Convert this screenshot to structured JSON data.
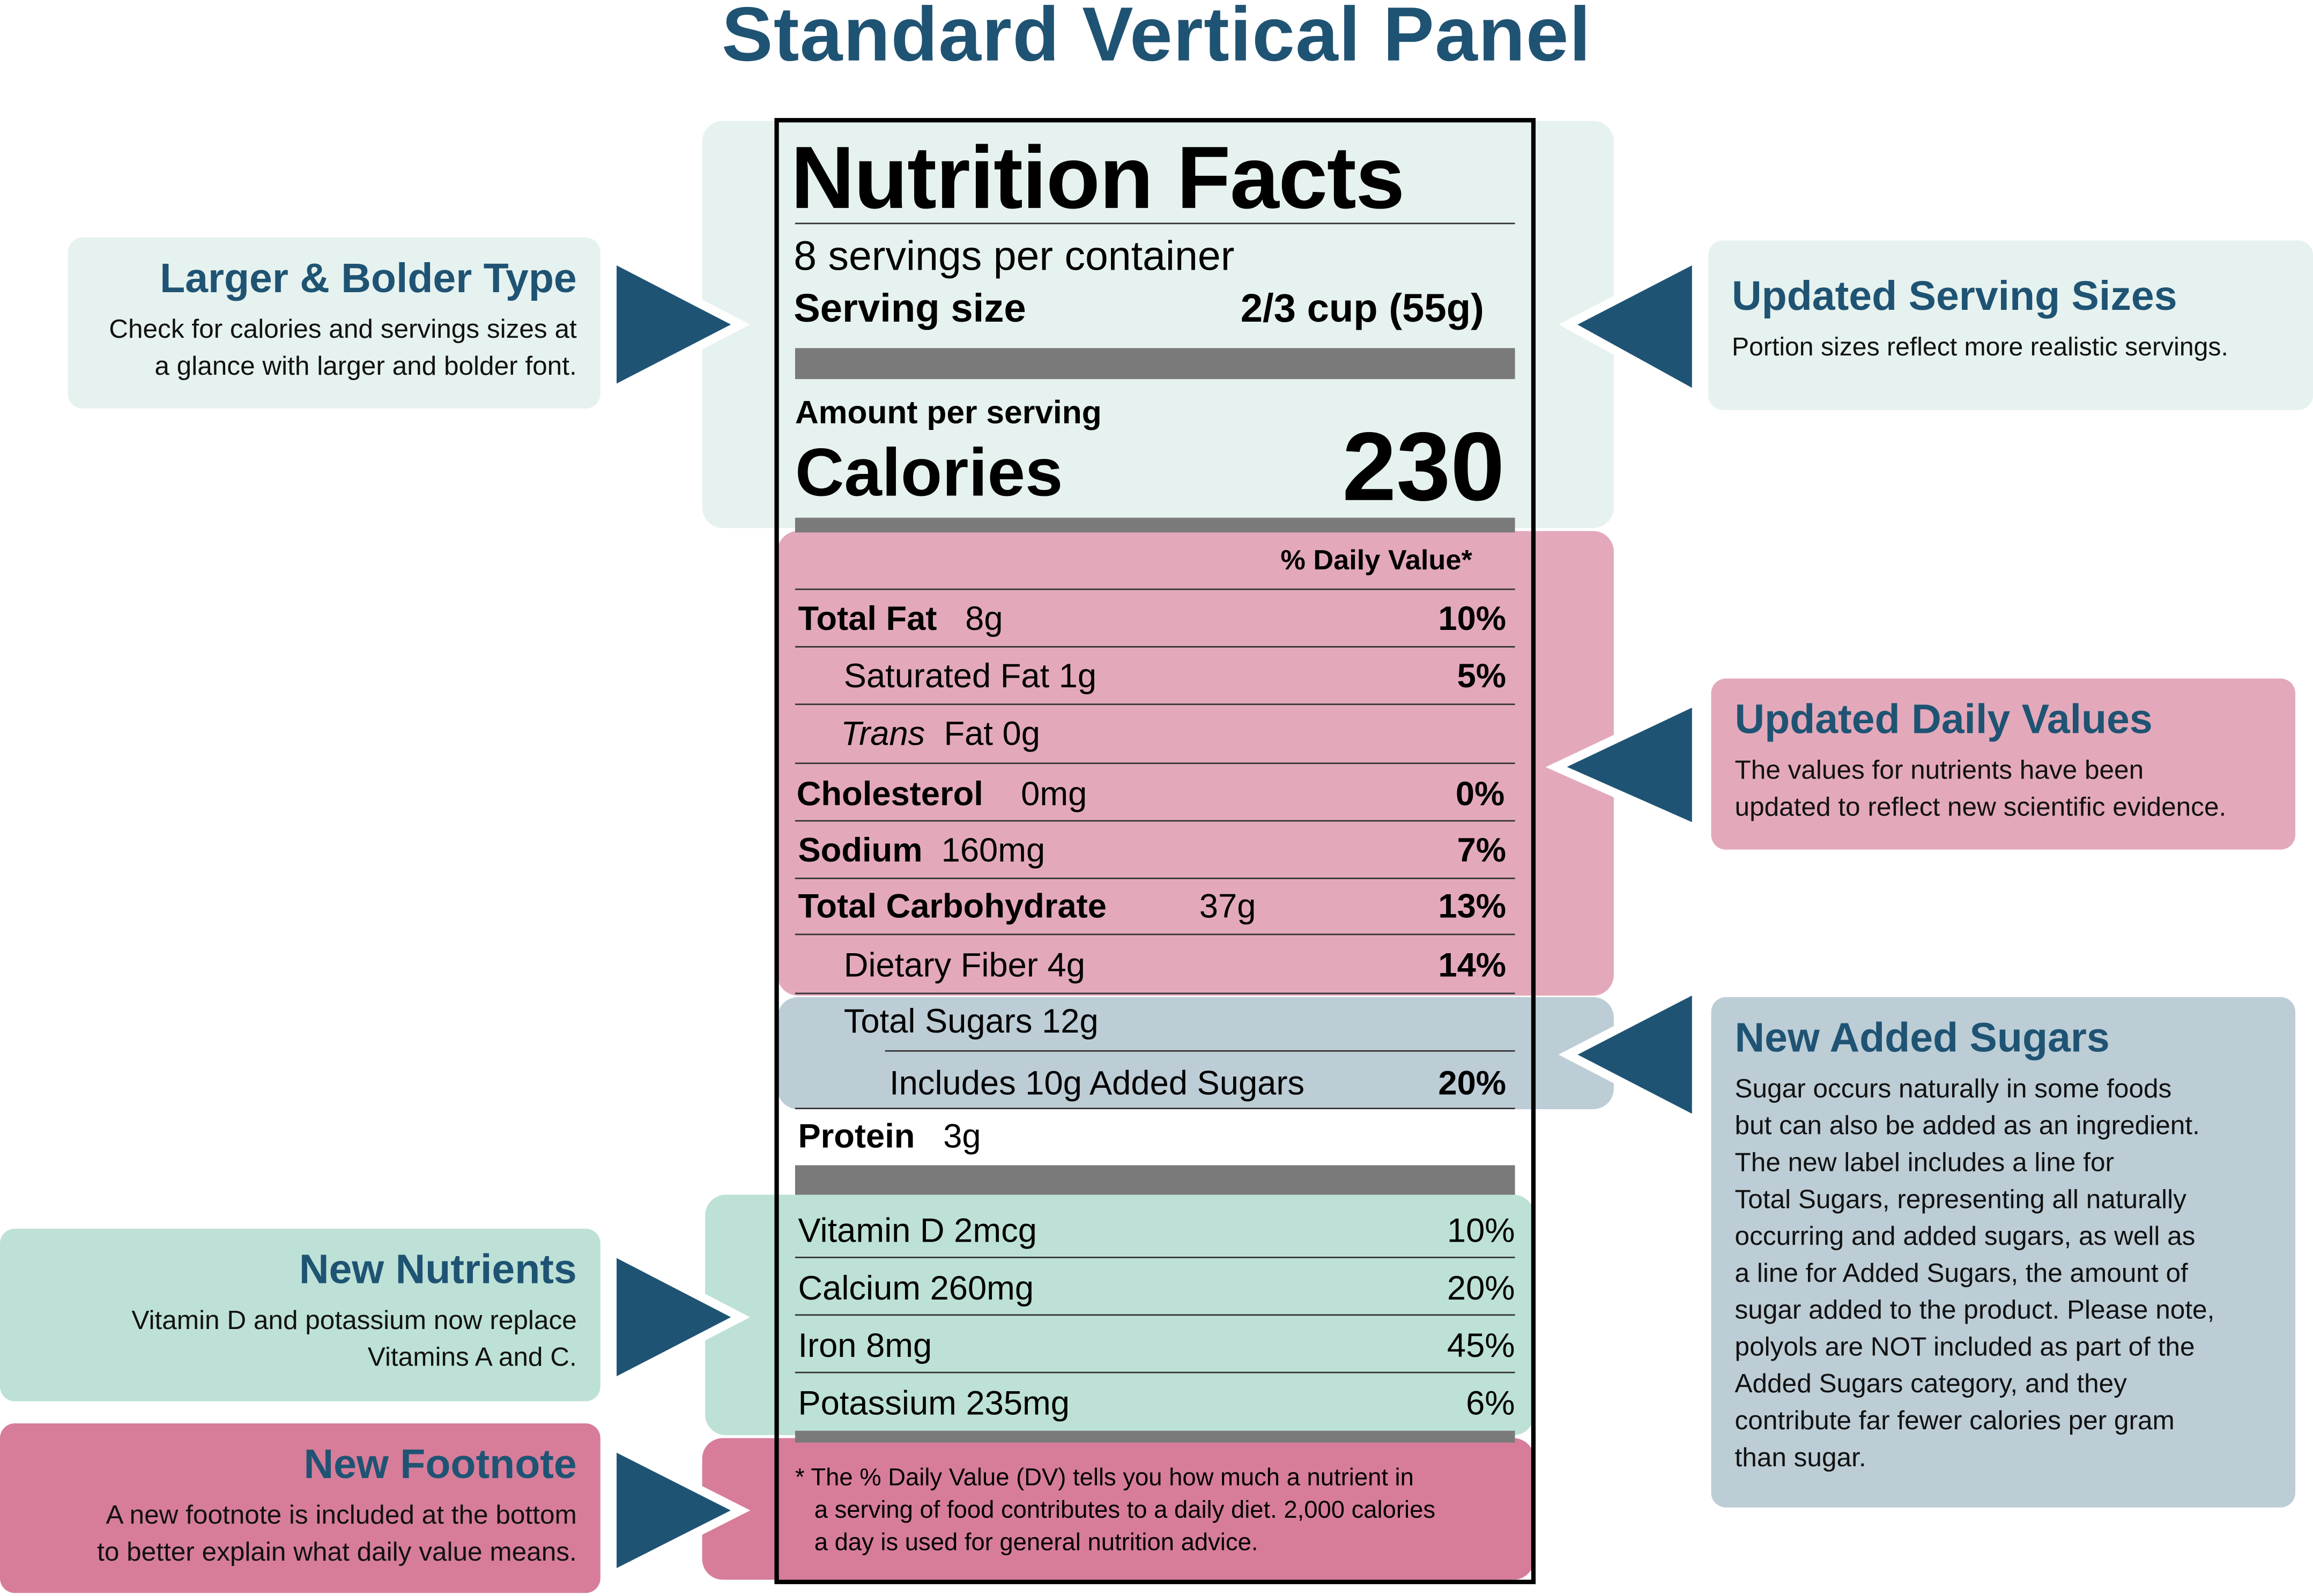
{
  "title": "Standard Vertical Panel",
  "colors": {
    "accent": "#1f5373",
    "mint_light": "#e6f2ef",
    "pink": "#e3a9ba",
    "blue_grey": "#bccdd6",
    "mint": "#bde1d6",
    "rose": "#d77d9a",
    "bar_gray": "#7a7a7a"
  },
  "label": {
    "heading": "Nutrition Facts",
    "servings": "8 servings per container",
    "serving_size_label": "Serving size",
    "serving_size_value": "2/3 cup (55g)",
    "amount_per_serving": "Amount per serving",
    "calories_label": "Calories",
    "calories_value": "230",
    "dv_header": "% Daily Value*",
    "nutrients": [
      {
        "name": "Total Fat",
        "amount": "8g",
        "dv": "10%"
      },
      {
        "name": "Saturated Fat 1g",
        "amount": "",
        "dv": "5%"
      },
      {
        "name_italic": "Trans",
        "name": "Fat 0g",
        "amount": "",
        "dv": ""
      },
      {
        "name": "Cholesterol",
        "amount": "0mg",
        "dv": "0%"
      },
      {
        "name": "Sodium",
        "amount": "160mg",
        "dv": "7%"
      },
      {
        "name": "Total Carbohydrate",
        "amount": "37g",
        "dv": "13%"
      },
      {
        "name": "Dietary Fiber 4g",
        "amount": "",
        "dv": "14%"
      },
      {
        "name": "Total Sugars 12g",
        "amount": "",
        "dv": ""
      },
      {
        "name": "Includes 10g Added Sugars",
        "amount": "",
        "dv": "20%"
      },
      {
        "name": "Protein",
        "amount": "3g",
        "dv": ""
      }
    ],
    "vitamins": [
      {
        "name": "Vitamin D 2mcg",
        "dv": "10%"
      },
      {
        "name": "Calcium 260mg",
        "dv": "20%"
      },
      {
        "name": "Iron 8mg",
        "dv": "45%"
      },
      {
        "name": "Potassium 235mg",
        "dv": "6%"
      }
    ],
    "footnote": [
      "* The % Daily Value (DV) tells you how much a nutrient in",
      "a serving of food contributes to a daily diet. 2,000 calories",
      "a day is used for general nutrition advice."
    ]
  },
  "callouts": {
    "larger_bolder": {
      "title": "Larger & Bolder Type",
      "text": [
        "Check for calories and servings sizes at",
        "a glance with larger and bolder font."
      ]
    },
    "serving_sizes": {
      "title": "Updated Serving Sizes",
      "text": [
        "Portion sizes reflect more realistic servings."
      ]
    },
    "daily_values": {
      "title": "Updated Daily Values",
      "text": [
        "The values for nutrients have been",
        "updated to reflect new scientific evidence."
      ]
    },
    "added_sugars": {
      "title": "New Added Sugars",
      "text": [
        "Sugar occurs naturally in some foods",
        "but can also be added as an ingredient.",
        "The new label includes a line for",
        "Total Sugars, representing all naturally",
        "occurring and added sugars, as well as",
        "a line for Added Sugars, the amount of",
        "sugar added to the product. Please note,",
        "polyols are NOT included as part of the",
        "Added Sugars category, and they",
        "contribute far fewer calories per gram",
        "than sugar."
      ]
    },
    "new_nutrients": {
      "title": "New Nutrients",
      "text": [
        "Vitamin D and potassium now replace",
        "Vitamins A and C."
      ]
    },
    "new_footnote": {
      "title": "New Footnote",
      "text": [
        "A new footnote is included at the bottom",
        "to better explain what daily value means."
      ]
    }
  }
}
